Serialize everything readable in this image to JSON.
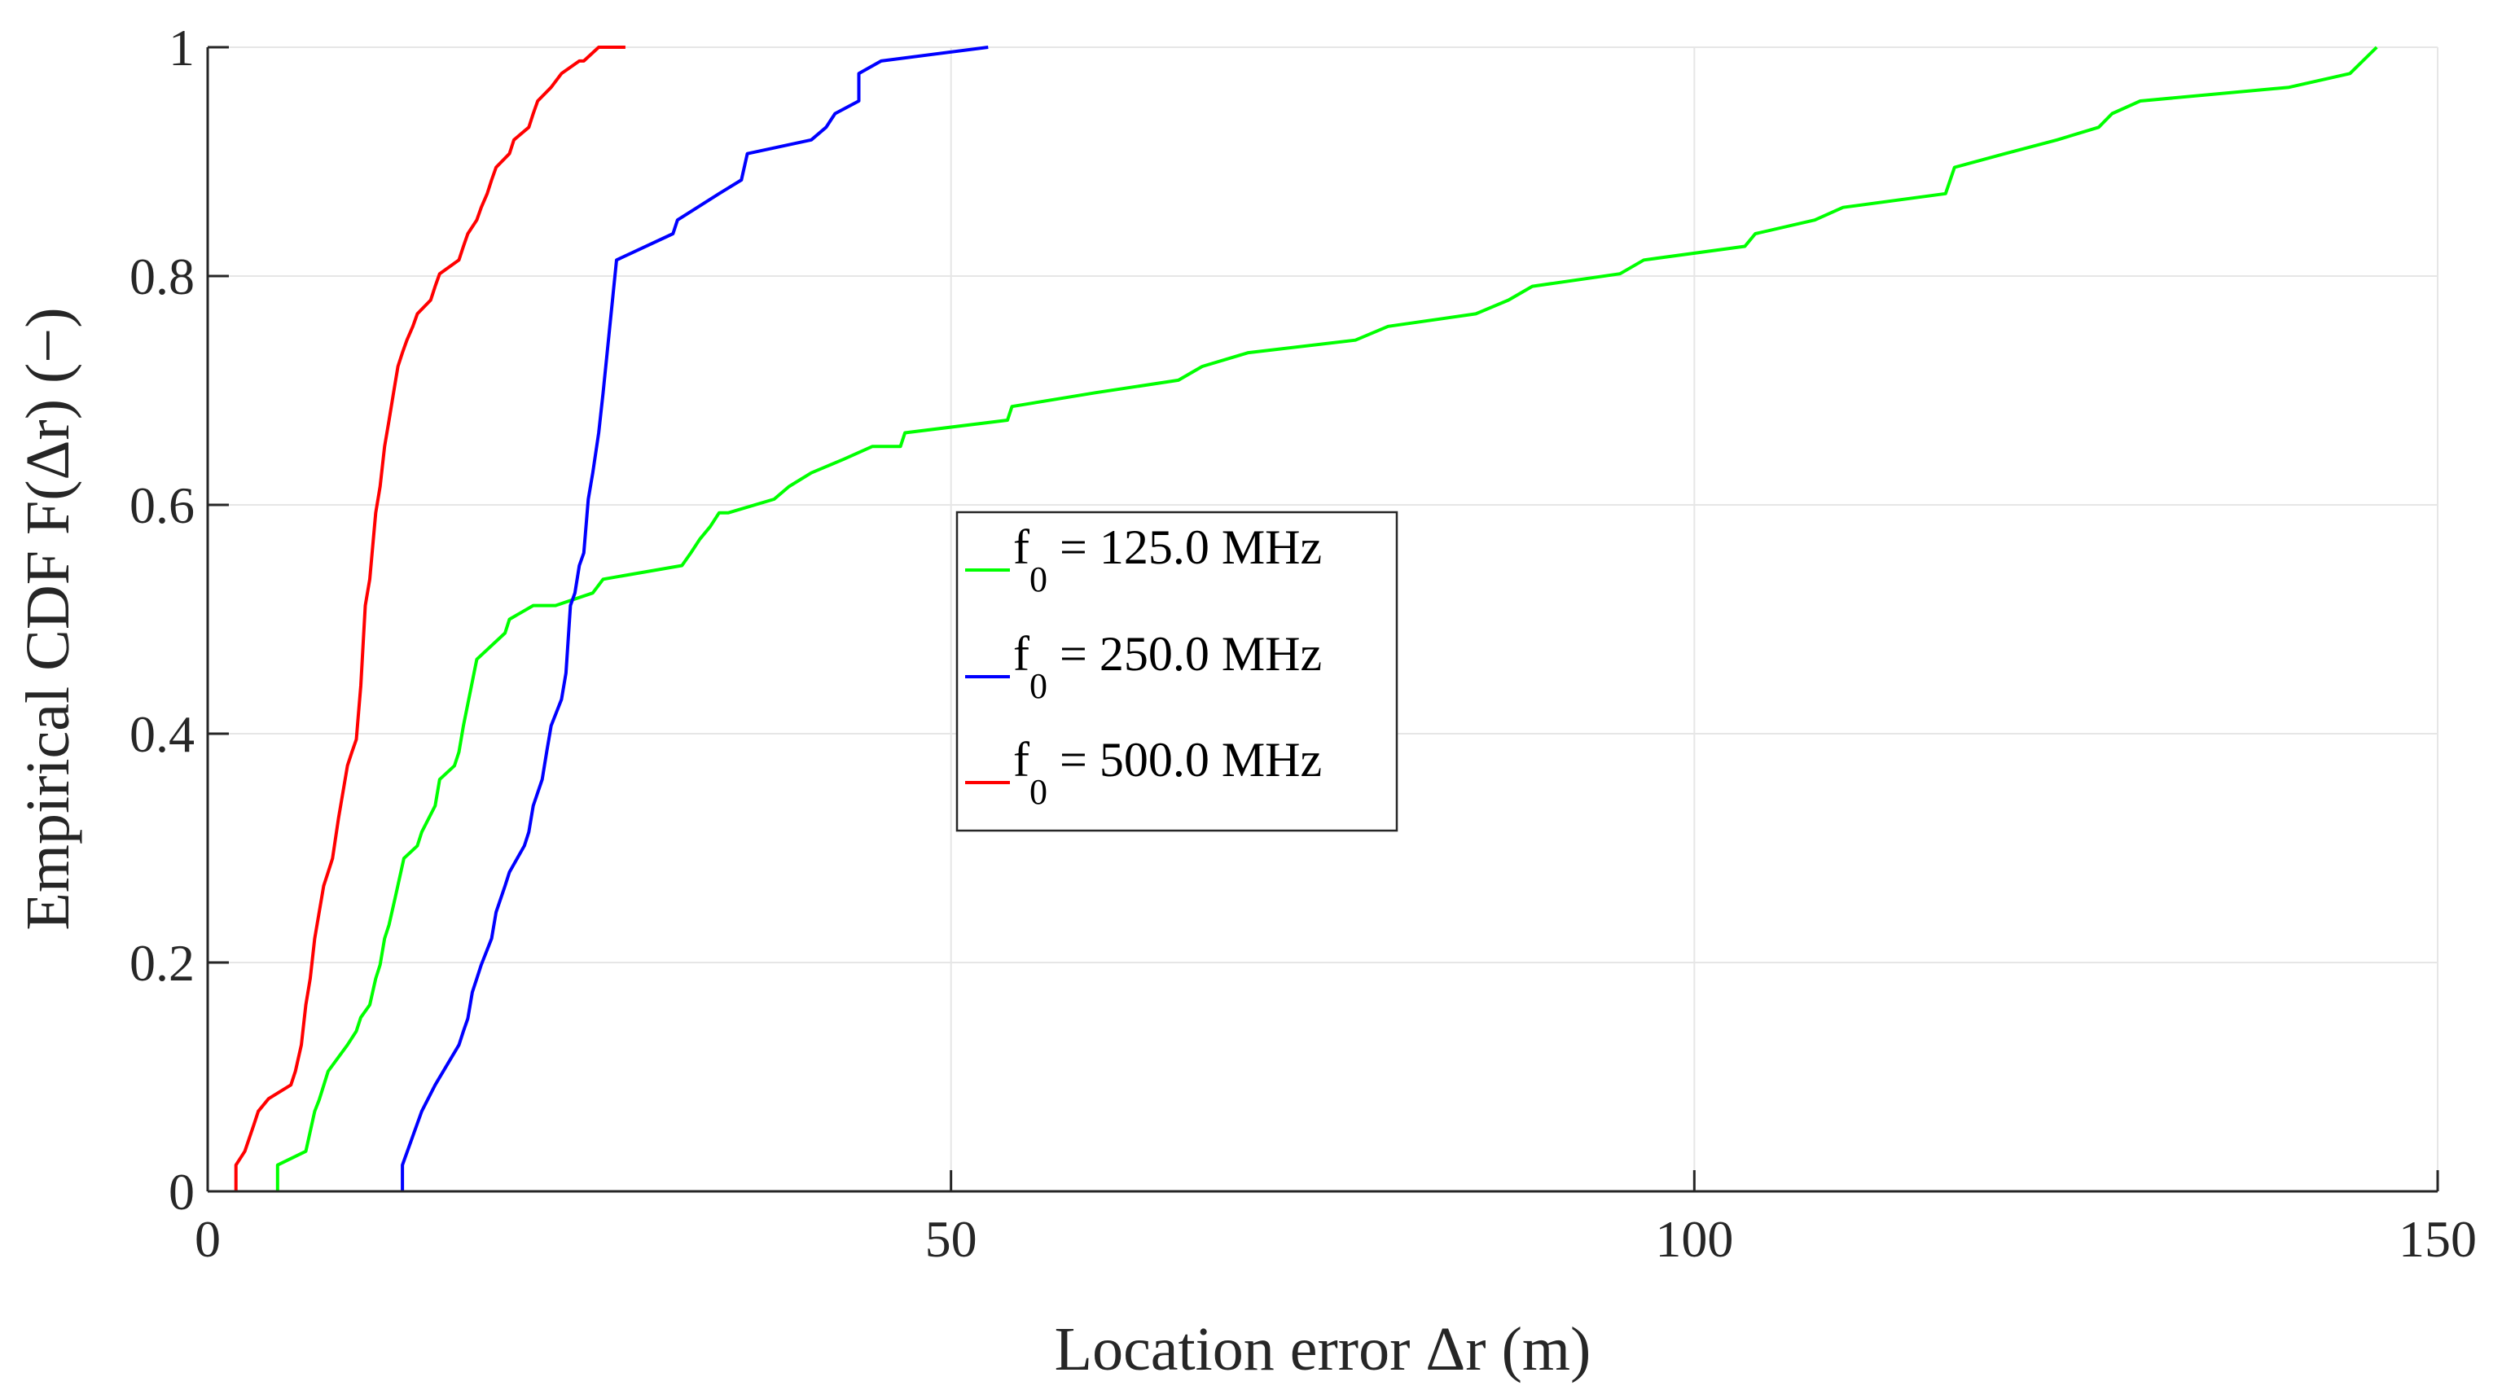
{
  "chart_data": {
    "type": "line",
    "xlabel": "Location error  Δr (m)",
    "ylabel": "Empirical CDF  F(Δr) (−)",
    "xlim": [
      0,
      150
    ],
    "ylim": [
      0,
      1
    ],
    "xticks": [
      0,
      50,
      100,
      150
    ],
    "xtick_labels": [
      "0",
      "50",
      "100",
      "150"
    ],
    "yticks": [
      0,
      0.2,
      0.4,
      0.6,
      0.8,
      1
    ],
    "ytick_labels": [
      "0",
      "0.2",
      "0.4",
      "0.6",
      "0.8",
      "1"
    ],
    "grid": true,
    "legend_position": "center",
    "series": [
      {
        "name": "f0 = 125.0 MHz",
        "color": "#00ff00",
        "x": [
          4.7,
          4.7,
          6.6,
          7.2,
          7.5,
          8.1,
          9.4,
          10.0,
          10.3,
          10.9,
          11.3,
          11.6,
          11.9,
          12.2,
          12.6,
          13.2,
          14.1,
          14.4,
          15.3,
          15.6,
          16.6,
          16.9,
          17.2,
          18.1,
          20.0,
          20.3,
          21.9,
          22.8,
          23.4,
          25.9,
          26.6,
          31.9,
          32.5,
          33.1,
          33.8,
          34.4,
          35.0,
          38.1,
          39.1,
          40.6,
          42.8,
          44.7,
          46.6,
          46.9,
          53.8,
          54.1,
          59.7,
          65.3,
          66.9,
          70.0,
          77.2,
          79.4,
          85.3,
          87.5,
          89.1,
          95.0,
          96.6,
          103.4,
          104.1,
          108.1,
          110.0,
          116.9,
          117.5,
          120.9,
          124.4,
          127.2,
          128.1,
          130.0,
          140.0,
          144.1,
          145.9
        ],
        "y": [
          0.0,
          0.023,
          0.035,
          0.07,
          0.08,
          0.105,
          0.128,
          0.14,
          0.152,
          0.163,
          0.186,
          0.198,
          0.221,
          0.233,
          0.256,
          0.291,
          0.302,
          0.314,
          0.337,
          0.36,
          0.372,
          0.384,
          0.407,
          0.465,
          0.488,
          0.5,
          0.512,
          0.512,
          0.512,
          0.523,
          0.535,
          0.547,
          0.558,
          0.57,
          0.581,
          0.593,
          0.593,
          0.605,
          0.616,
          0.628,
          0.64,
          0.651,
          0.651,
          0.663,
          0.674,
          0.686,
          0.698,
          0.709,
          0.721,
          0.733,
          0.744,
          0.756,
          0.767,
          0.779,
          0.791,
          0.802,
          0.814,
          0.826,
          0.837,
          0.849,
          0.86,
          0.872,
          0.895,
          0.907,
          0.919,
          0.93,
          0.942,
          0.953,
          0.965,
          0.977,
          1.0
        ]
      },
      {
        "name": "f0 = 250.0 MHz",
        "color": "#0000ff",
        "x": [
          13.1,
          13.1,
          14.4,
          15.3,
          16.9,
          17.2,
          17.5,
          17.8,
          18.1,
          18.4,
          19.1,
          19.4,
          20.0,
          20.3,
          21.3,
          21.6,
          21.9,
          22.5,
          22.8,
          23.1,
          23.8,
          24.1,
          24.4,
          24.7,
          25.0,
          25.3,
          25.6,
          25.9,
          26.3,
          26.6,
          27.5,
          31.3,
          31.6,
          34.4,
          35.9,
          36.3,
          40.6,
          41.6,
          42.2,
          43.8,
          43.8,
          45.3,
          52.5
        ],
        "y": [
          0.0,
          0.023,
          0.07,
          0.093,
          0.128,
          0.14,
          0.151,
          0.174,
          0.186,
          0.198,
          0.221,
          0.244,
          0.267,
          0.279,
          0.302,
          0.314,
          0.337,
          0.36,
          0.384,
          0.407,
          0.43,
          0.453,
          0.512,
          0.523,
          0.547,
          0.558,
          0.605,
          0.628,
          0.663,
          0.698,
          0.814,
          0.837,
          0.849,
          0.872,
          0.884,
          0.907,
          0.919,
          0.93,
          0.942,
          0.953,
          0.977,
          0.988,
          1.0
        ]
      },
      {
        "name": "f0 = 500.0 MHz",
        "color": "#ff0000",
        "x": [
          1.9,
          1.9,
          2.5,
          3.1,
          3.4,
          4.1,
          5.6,
          5.9,
          6.3,
          6.6,
          6.9,
          7.2,
          7.5,
          7.8,
          8.1,
          8.4,
          8.8,
          9.1,
          9.4,
          9.7,
          10.0,
          10.3,
          10.6,
          10.9,
          11.3,
          11.6,
          11.9,
          12.2,
          12.5,
          12.8,
          13.1,
          13.4,
          13.8,
          14.1,
          15.0,
          15.3,
          15.6,
          16.9,
          17.2,
          17.5,
          18.1,
          18.4,
          18.8,
          19.1,
          19.4,
          20.3,
          20.6,
          21.6,
          21.9,
          22.2,
          23.1,
          23.8,
          25.0,
          25.3,
          26.3,
          28.1
        ],
        "y": [
          0.0,
          0.023,
          0.035,
          0.058,
          0.07,
          0.081,
          0.093,
          0.105,
          0.128,
          0.163,
          0.186,
          0.221,
          0.244,
          0.267,
          0.279,
          0.291,
          0.326,
          0.349,
          0.372,
          0.384,
          0.395,
          0.442,
          0.512,
          0.535,
          0.593,
          0.616,
          0.651,
          0.674,
          0.698,
          0.721,
          0.733,
          0.744,
          0.756,
          0.767,
          0.779,
          0.791,
          0.802,
          0.814,
          0.826,
          0.837,
          0.849,
          0.86,
          0.872,
          0.884,
          0.895,
          0.907,
          0.919,
          0.93,
          0.942,
          0.953,
          0.965,
          0.977,
          0.988,
          0.988,
          1.0,
          1.0
        ]
      }
    ]
  }
}
